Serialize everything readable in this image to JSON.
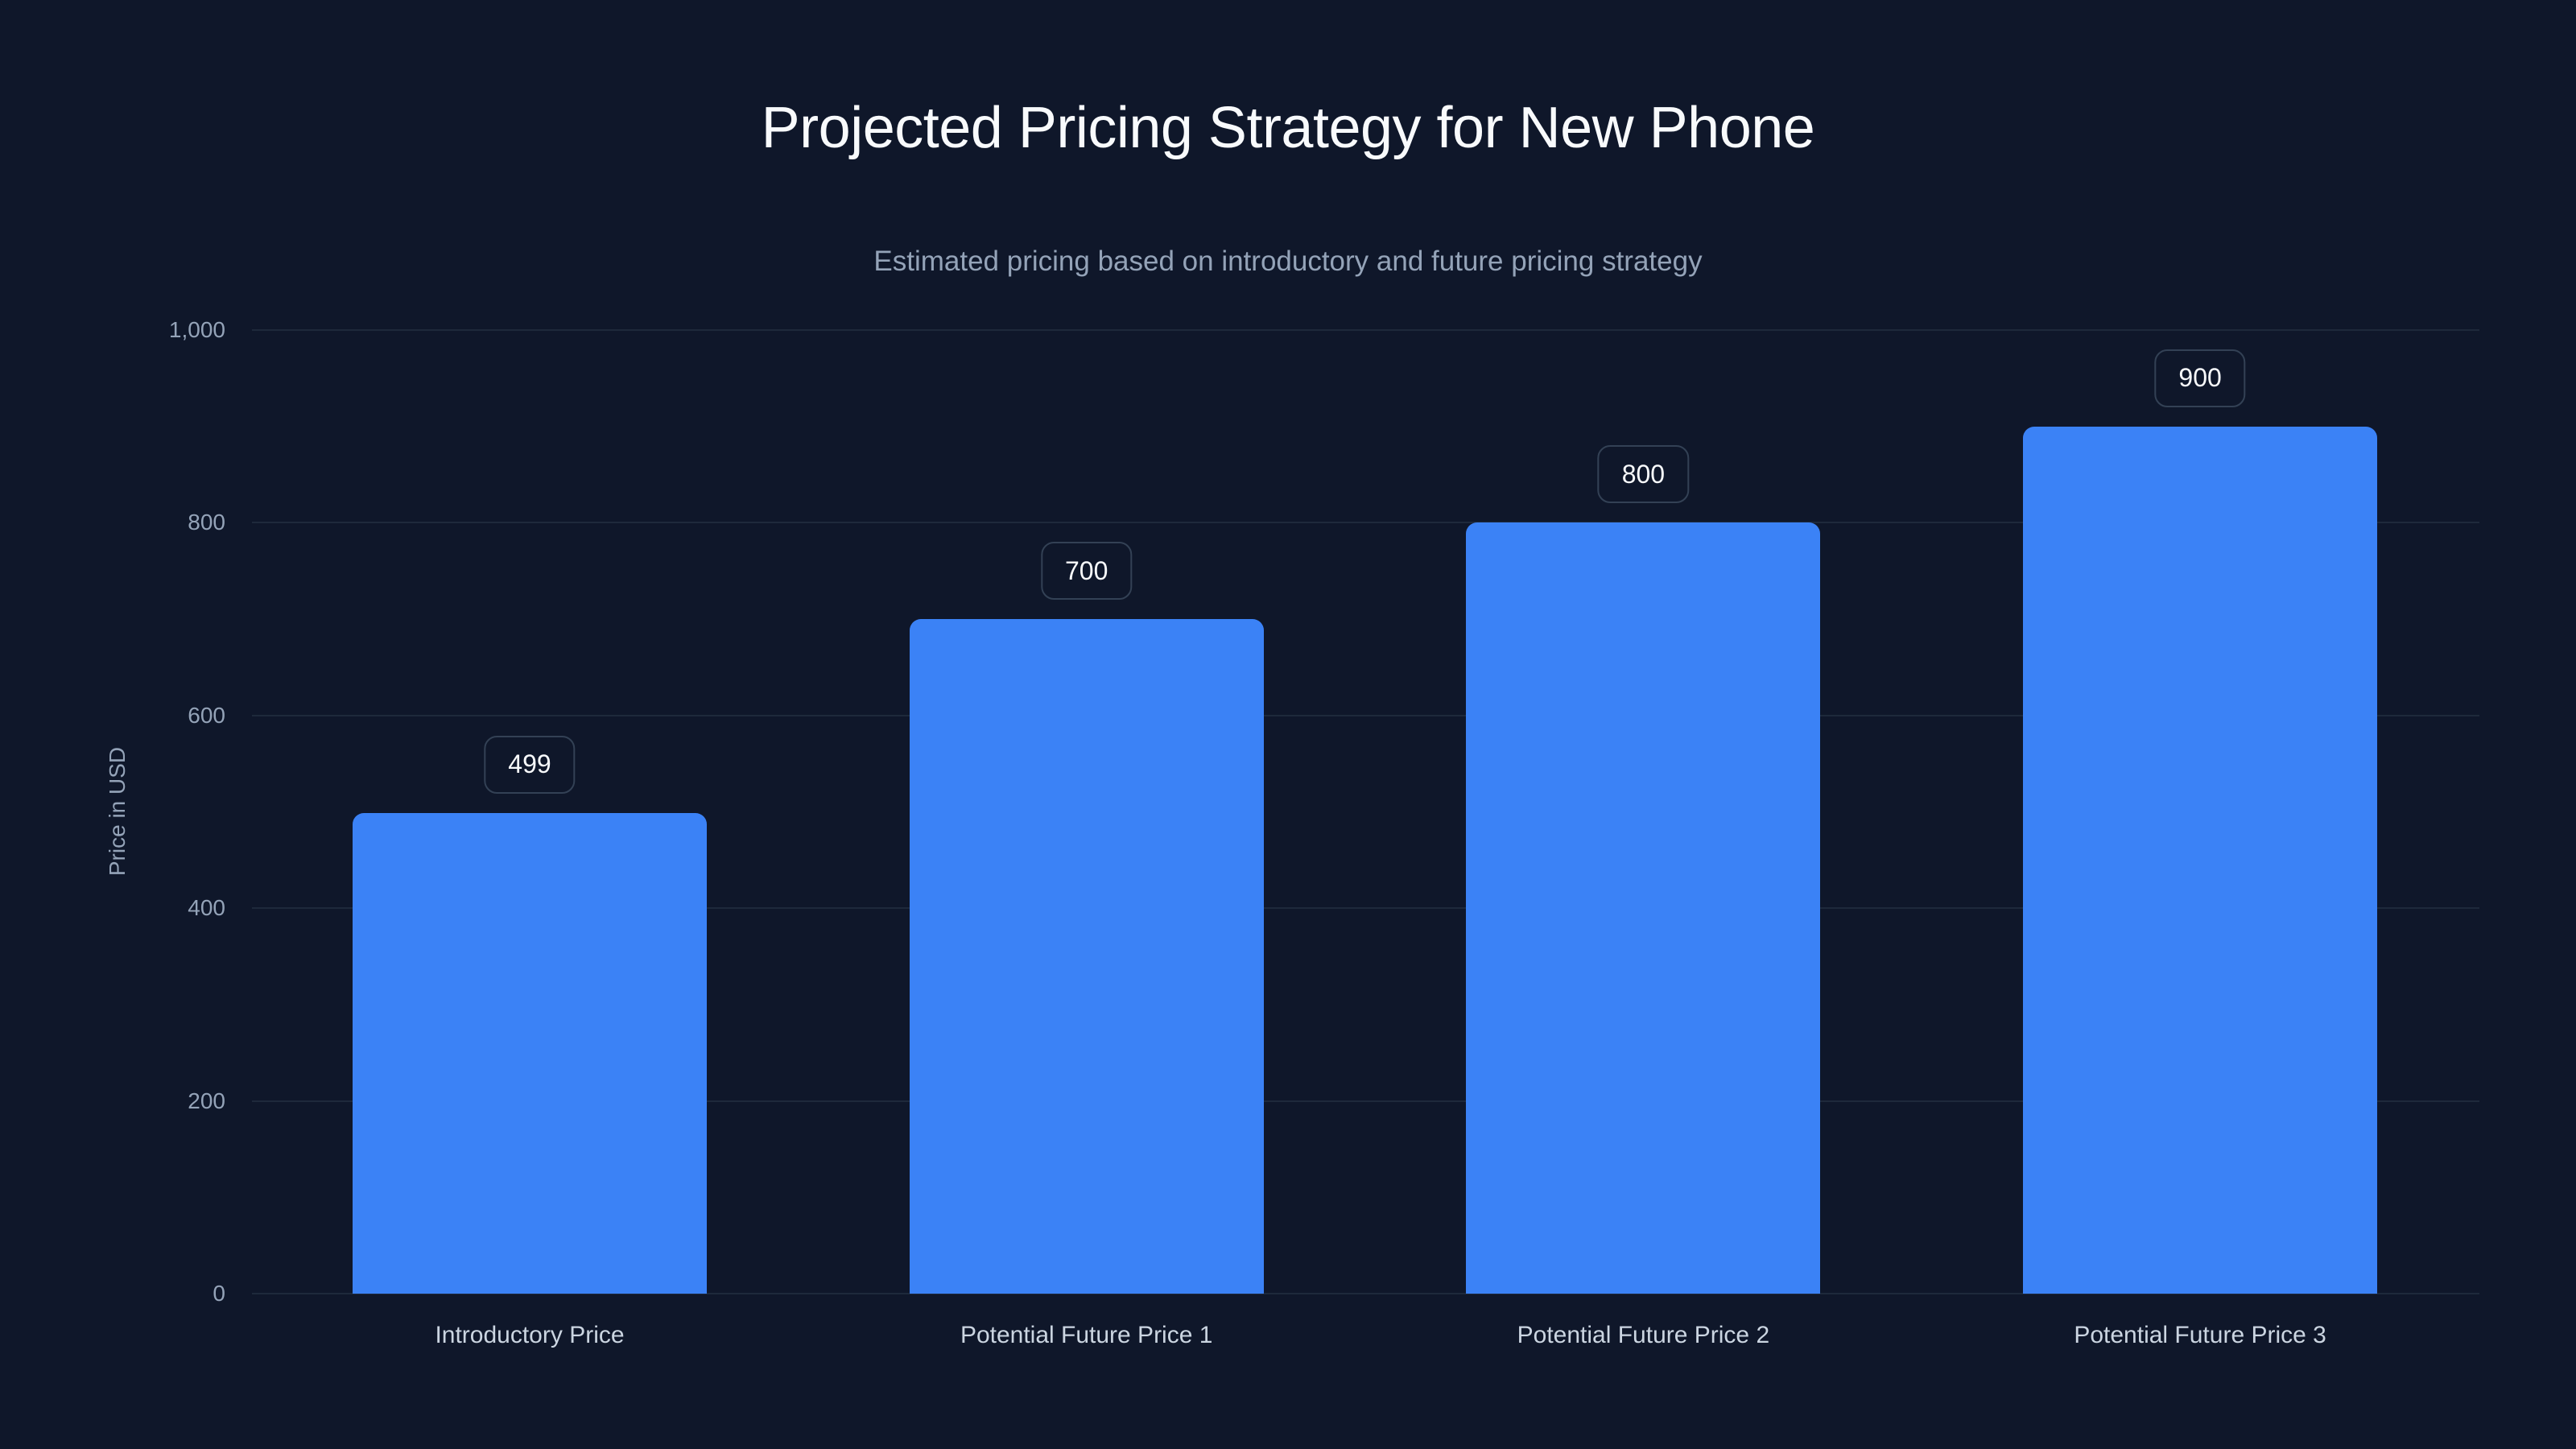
{
  "header": {
    "title": "Projected Pricing Strategy for New Phone",
    "subtitle": "Estimated pricing based on introductory and future pricing strategy"
  },
  "colors": {
    "background": "#0f172a",
    "bar": "#3b82f6",
    "gridline": "#1e293b",
    "label_border": "#334155",
    "axis_text": "#94a3b8",
    "title_text": "#f8fafc"
  },
  "axis": {
    "ylabel": "Price in USD",
    "yticks": [
      "0",
      "200",
      "400",
      "600",
      "800",
      "1,000"
    ]
  },
  "bars": [
    {
      "label": "Introductory Price",
      "value": 499,
      "value_label": "499"
    },
    {
      "label": "Potential Future Price 1",
      "value": 700,
      "value_label": "700"
    },
    {
      "label": "Potential Future Price 2",
      "value": 800,
      "value_label": "800"
    },
    {
      "label": "Potential Future Price 3",
      "value": 900,
      "value_label": "900"
    }
  ],
  "chart_data": {
    "type": "bar",
    "title": "Projected Pricing Strategy for New Phone",
    "subtitle": "Estimated pricing based on introductory and future pricing strategy",
    "categories": [
      "Introductory Price",
      "Potential Future Price 1",
      "Potential Future Price 2",
      "Potential Future Price 3"
    ],
    "values": [
      499,
      700,
      800,
      900
    ],
    "xlabel": "",
    "ylabel": "Price in USD",
    "ylim": [
      0,
      1000
    ],
    "yticks": [
      0,
      200,
      400,
      600,
      800,
      1000
    ],
    "grid": true,
    "legend": null,
    "data_labels": true
  }
}
